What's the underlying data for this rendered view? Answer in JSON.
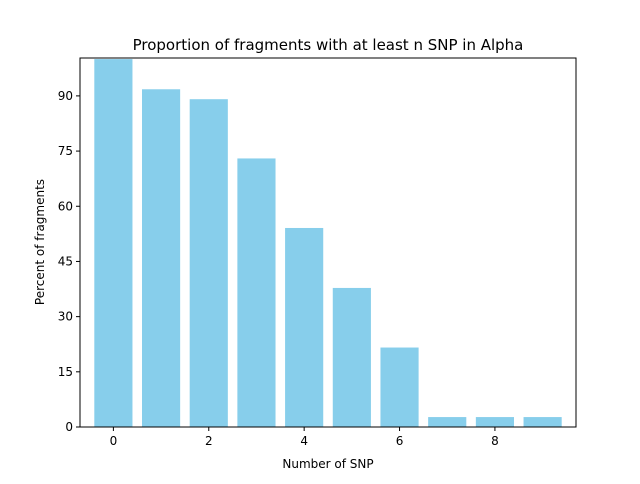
{
  "chart_data": {
    "type": "bar",
    "title": "Proportion of fragments with at least n SNP in Alpha",
    "xlabel": "Number of SNP",
    "ylabel": "Percent of fragments",
    "categories": [
      0,
      1,
      2,
      3,
      4,
      5,
      6,
      7,
      8,
      9
    ],
    "values": [
      100,
      91.8,
      89.1,
      73.0,
      54.1,
      37.8,
      21.6,
      2.7,
      2.7,
      2.7
    ],
    "xlim": [
      -0.7,
      9.7
    ],
    "ylim": [
      0,
      100.3
    ],
    "xticks": [
      0,
      2,
      4,
      6,
      8
    ],
    "yticks": [
      0,
      15,
      30,
      45,
      60,
      75,
      90
    ],
    "bar_width": 0.8,
    "bar_color": "#87CEEB",
    "grid": false,
    "legend": "none"
  }
}
